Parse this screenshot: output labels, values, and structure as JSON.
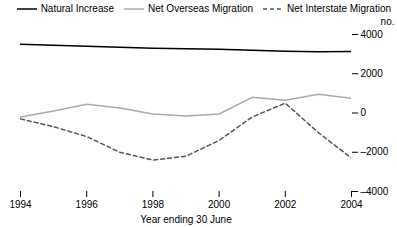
{
  "chart_data": {
    "type": "line",
    "xlabel": "Year ending 30 June",
    "ylabel": "no.",
    "x": [
      1994,
      1995,
      1996,
      1997,
      1998,
      1999,
      2000,
      2001,
      2002,
      2003,
      2004
    ],
    "series": [
      {
        "name": "Natural Increase",
        "color": "#000000",
        "line_style": "solid",
        "values": [
          3500,
          3450,
          3400,
          3350,
          3300,
          3270,
          3250,
          3200,
          3150,
          3120,
          3130
        ]
      },
      {
        "name": "Net Overseas Migration",
        "color": "#aaaaaa",
        "line_style": "solid",
        "values": [
          -200,
          100,
          450,
          250,
          -50,
          -150,
          -50,
          800,
          650,
          950,
          750
        ]
      },
      {
        "name": "Net Interstate Migration",
        "color": "#555555",
        "line_style": "dashed",
        "values": [
          -300,
          -700,
          -1200,
          -2000,
          -2400,
          -2200,
          -1400,
          -200,
          500,
          -1000,
          -2300
        ]
      }
    ],
    "xlim": [
      1994,
      2004
    ],
    "xticks": [
      1994,
      1996,
      1998,
      2000,
      2002,
      2004
    ],
    "ylim": [
      -4000,
      4000
    ],
    "yticks": [
      {
        "value": -4000,
        "label": "–4000"
      },
      {
        "value": -2000,
        "label": "–2000"
      },
      0,
      2000,
      4000
    ],
    "legend": "upper right"
  }
}
